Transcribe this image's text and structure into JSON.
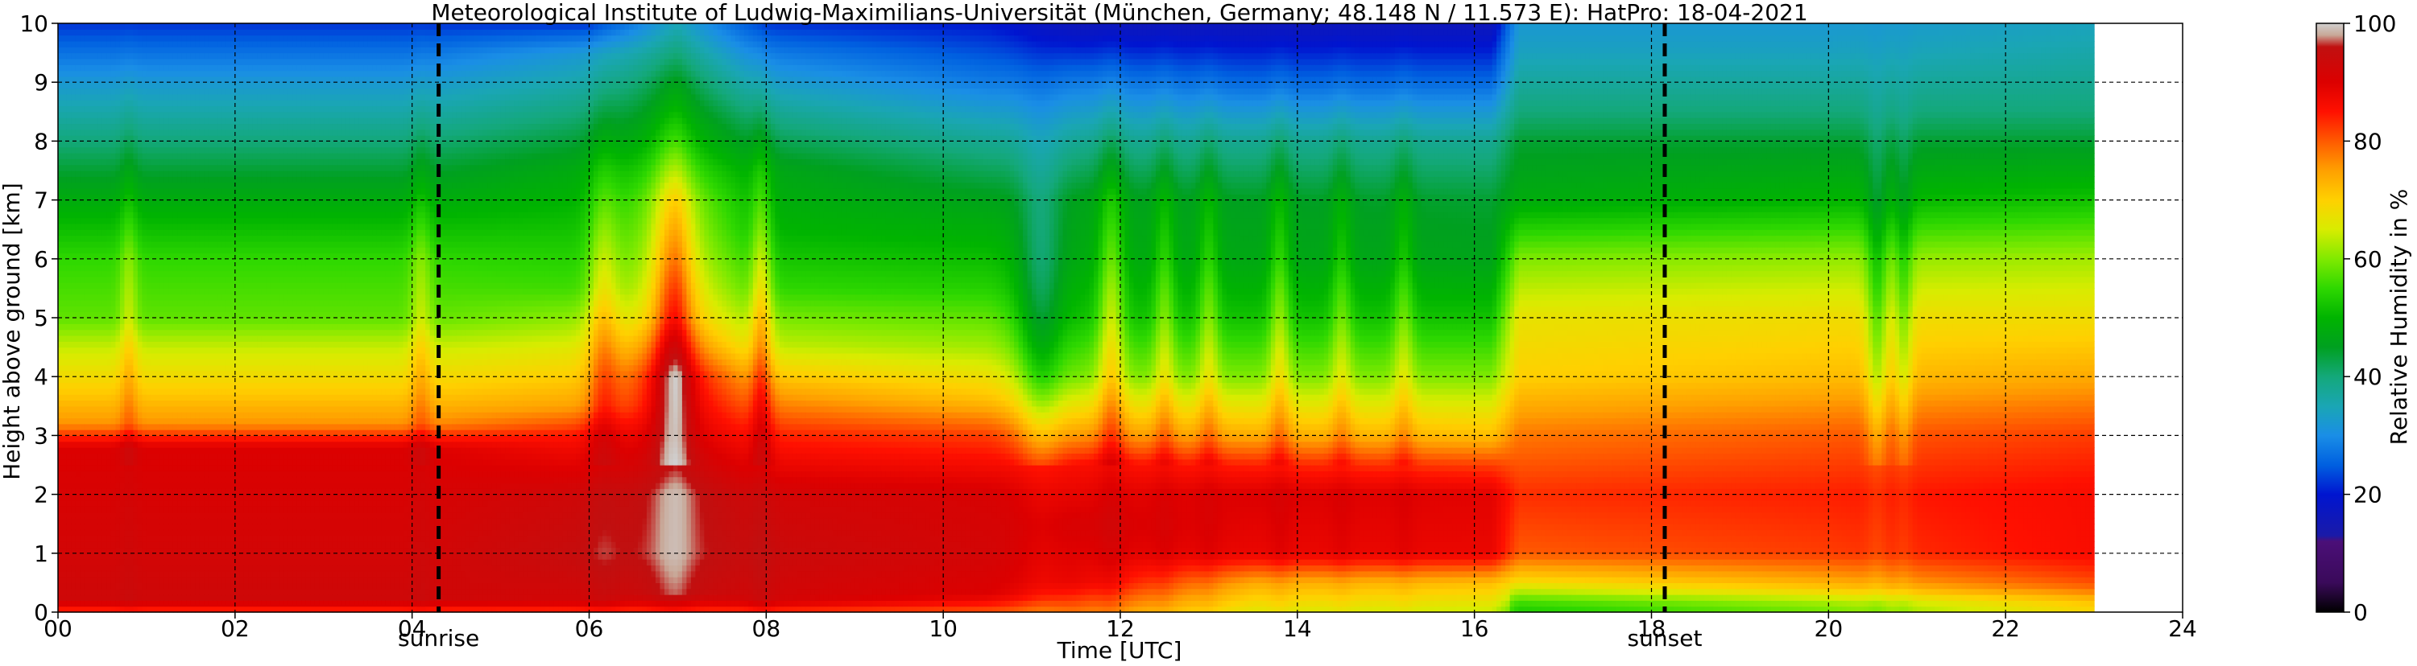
{
  "chart_data": {
    "type": "heatmap",
    "title": "Meteorological Institute of Ludwig-Maximilians-Universität (München, Germany; 48.148 N / 11.573 E):    HatPro: 18-04-2021",
    "xlabel": "Time [UTC]",
    "ylabel": "Height above ground [km]",
    "colorbar_label": "Relative Humidity in %",
    "xlim": [
      0,
      24
    ],
    "ylim": [
      0,
      10
    ],
    "clim": [
      0,
      100
    ],
    "data_end_hour": 23.0,
    "grid": true,
    "xticks": [
      {
        "v": 0,
        "label": "00"
      },
      {
        "v": 2,
        "label": "02"
      },
      {
        "v": 4,
        "label": "04"
      },
      {
        "v": 6,
        "label": "06"
      },
      {
        "v": 8,
        "label": "08"
      },
      {
        "v": 10,
        "label": "10"
      },
      {
        "v": 12,
        "label": "12"
      },
      {
        "v": 14,
        "label": "14"
      },
      {
        "v": 16,
        "label": "16"
      },
      {
        "v": 18,
        "label": "18"
      },
      {
        "v": 20,
        "label": "20"
      },
      {
        "v": 22,
        "label": "22"
      },
      {
        "v": 24,
        "label": "24"
      }
    ],
    "yticks": [
      {
        "v": 0,
        "label": "0"
      },
      {
        "v": 1,
        "label": "1"
      },
      {
        "v": 2,
        "label": "2"
      },
      {
        "v": 3,
        "label": "3"
      },
      {
        "v": 4,
        "label": "4"
      },
      {
        "v": 5,
        "label": "5"
      },
      {
        "v": 6,
        "label": "6"
      },
      {
        "v": 7,
        "label": "7"
      },
      {
        "v": 8,
        "label": "8"
      },
      {
        "v": 9,
        "label": "9"
      },
      {
        "v": 10,
        "label": "10"
      }
    ],
    "cbar_ticks": [
      {
        "v": 0,
        "label": "0"
      },
      {
        "v": 20,
        "label": "20"
      },
      {
        "v": 40,
        "label": "40"
      },
      {
        "v": 60,
        "label": "60"
      },
      {
        "v": 80,
        "label": "80"
      },
      {
        "v": 100,
        "label": "100"
      }
    ],
    "markers": [
      {
        "name": "sunrise",
        "hour": 4.3,
        "label": "sunrise"
      },
      {
        "name": "sunset",
        "hour": 18.15,
        "label": "sunset"
      }
    ],
    "colormap": [
      {
        "v": 0,
        "color": "#000000"
      },
      {
        "v": 5,
        "color": "#3a0a5a"
      },
      {
        "v": 12,
        "color": "#4b0f78"
      },
      {
        "v": 13,
        "color": "#1a1aa8"
      },
      {
        "v": 20,
        "color": "#0015d0"
      },
      {
        "v": 25,
        "color": "#0060e0"
      },
      {
        "v": 30,
        "color": "#1a8ee6"
      },
      {
        "v": 35,
        "color": "#1aa6b4"
      },
      {
        "v": 40,
        "color": "#14a87a"
      },
      {
        "v": 45,
        "color": "#00a020"
      },
      {
        "v": 50,
        "color": "#00b400"
      },
      {
        "v": 55,
        "color": "#2ed800"
      },
      {
        "v": 60,
        "color": "#80ea00"
      },
      {
        "v": 65,
        "color": "#d8ec00"
      },
      {
        "v": 70,
        "color": "#ffd000"
      },
      {
        "v": 75,
        "color": "#ffa000"
      },
      {
        "v": 80,
        "color": "#ff5a00"
      },
      {
        "v": 85,
        "color": "#ff1000"
      },
      {
        "v": 90,
        "color": "#dc0000"
      },
      {
        "v": 96,
        "color": "#c01010"
      },
      {
        "v": 98,
        "color": "#c8a898"
      },
      {
        "v": 100,
        "color": "#d0d0d0"
      }
    ],
    "profiles": [
      {
        "hour": 0.0,
        "rh": {
          "0": 82,
          "0.2": 93,
          "1": 92,
          "2": 91,
          "2.8": 90,
          "3.2": 76,
          "3.8": 70,
          "4.5": 64,
          "5": 58,
          "6": 55,
          "7": 48,
          "8": 40,
          "9": 32,
          "10": 22
        }
      },
      {
        "hour": 4.0,
        "rh": {
          "0": 82,
          "0.2": 93,
          "1": 92,
          "2": 91,
          "2.8": 90,
          "3.2": 76,
          "3.8": 70,
          "4.5": 64,
          "5": 58,
          "6": 55,
          "7": 48,
          "8": 40,
          "9": 32,
          "10": 22
        }
      },
      {
        "hour": 6.0,
        "rh": {
          "0": 82,
          "0.2": 92,
          "1": 95,
          "2": 93,
          "3": 85,
          "3.5": 75,
          "4.5": 66,
          "5.5": 56,
          "6.5": 52,
          "7.5": 48,
          "8.5": 40,
          "9.5": 32,
          "10": 22
        }
      },
      {
        "hour": 7.0,
        "rh": {
          "0": 82,
          "0.3": 95,
          "1": 97,
          "2": 97,
          "3": 91,
          "4": 88,
          "5": 72,
          "6": 66,
          "7": 62,
          "8": 52,
          "9": 44,
          "10": 34
        }
      },
      {
        "hour": 8.0,
        "rh": {
          "0": 82,
          "0.2": 92,
          "1": 94,
          "2": 92,
          "3": 84,
          "3.8": 74,
          "4.5": 64,
          "5.5": 55,
          "6.5": 50,
          "7.5": 47,
          "8.5": 38,
          "9.5": 28,
          "10": 22
        }
      },
      {
        "hour": 10.5,
        "rh": {
          "0": 80,
          "0.3": 90,
          "1": 92,
          "2": 91,
          "3": 82,
          "3.6": 72,
          "4.5": 62,
          "5.5": 54,
          "7": 46,
          "8": 38,
          "9": 28,
          "10": 20
        }
      },
      {
        "hour": 11.5,
        "rh": {
          "0": 78,
          "0.5": 88,
          "1.5": 91,
          "2.5": 86,
          "3": 76,
          "4": 60,
          "5": 52,
          "6": 48,
          "7": 46,
          "8": 38,
          "9": 28,
          "10": 16
        }
      },
      {
        "hour": 13.5,
        "rh": {
          "0": 66,
          "0.5": 74,
          "1": 88,
          "2": 90,
          "2.5": 84,
          "3": 74,
          "4": 60,
          "5": 52,
          "6": 47,
          "7": 45,
          "8": 38,
          "9": 26,
          "10": 16
        }
      },
      {
        "hour": 16.2,
        "rh": {
          "0": 64,
          "0.5": 72,
          "1": 88,
          "2": 89,
          "2.5": 82,
          "3": 72,
          "4": 60,
          "5": 52,
          "6": 46,
          "7": 44,
          "8": 38,
          "9": 26,
          "10": 16
        }
      },
      {
        "hour": 16.5,
        "rh": {
          "0": 56,
          "0.4": 66,
          "1": 80,
          "2": 83,
          "3": 78,
          "4": 70,
          "5": 67,
          "6": 60,
          "7": 48,
          "8": 44,
          "8.5": 40,
          "9.5": 34,
          "10": 32
        }
      },
      {
        "hour": 20.0,
        "rh": {
          "0": 62,
          "0.4": 72,
          "1": 82,
          "2": 84,
          "3": 80,
          "4": 72,
          "5": 68,
          "6": 61,
          "7": 50,
          "8": 44,
          "8.5": 40,
          "9.5": 34,
          "10": 32
        }
      },
      {
        "hour": 23.0,
        "rh": {
          "0": 72,
          "0.4": 80,
          "1": 86,
          "2": 86,
          "3": 82,
          "4": 74,
          "5": 68,
          "6": 62,
          "7": 52,
          "8": 44,
          "8.5": 40,
          "9.5": 36,
          "10": 34
        }
      }
    ],
    "plumes": [
      {
        "hour": 0.8,
        "width": 0.1,
        "amp": 6
      },
      {
        "hour": 4.1,
        "width": 0.12,
        "amp": 6
      },
      {
        "hour": 6.15,
        "width": 0.18,
        "amp": 9
      },
      {
        "hour": 6.95,
        "width": 0.22,
        "amp": 14
      },
      {
        "hour": 7.95,
        "width": 0.12,
        "amp": 12
      },
      {
        "hour": 11.1,
        "width": 0.25,
        "amp": -10
      },
      {
        "hour": 11.9,
        "width": 0.15,
        "amp": 12
      },
      {
        "hour": 12.5,
        "width": 0.12,
        "amp": 8
      },
      {
        "hour": 13.0,
        "width": 0.12,
        "amp": 8
      },
      {
        "hour": 13.8,
        "width": 0.12,
        "amp": 9
      },
      {
        "hour": 14.5,
        "width": 0.12,
        "amp": 7
      },
      {
        "hour": 15.2,
        "width": 0.12,
        "amp": 7
      },
      {
        "hour": 20.55,
        "width": 0.12,
        "amp": -10
      },
      {
        "hour": 20.85,
        "width": 0.1,
        "amp": -8
      }
    ]
  }
}
